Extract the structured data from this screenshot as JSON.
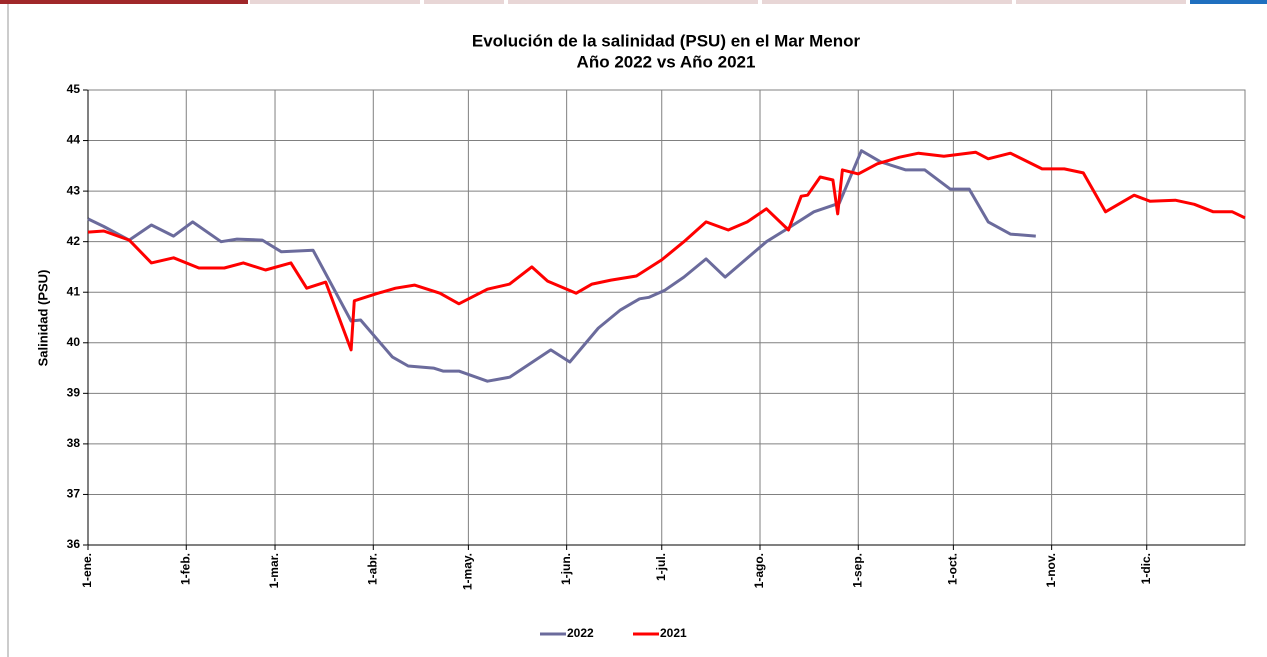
{
  "chart_data": {
    "type": "line",
    "title": "Evolución de la salinidad (PSU) en el Mar Menor",
    "subtitle": "Año 2022 vs Año 2021",
    "y_label": "Salinidad (PSU)",
    "xlim": [
      0,
      365
    ],
    "xticks": [
      {
        "value": 0,
        "label": "1-ene."
      },
      {
        "value": 31,
        "label": "1-feb."
      },
      {
        "value": 59,
        "label": "1-mar."
      },
      {
        "value": 90,
        "label": "1-abr."
      },
      {
        "value": 120,
        "label": "1-may."
      },
      {
        "value": 151,
        "label": "1-jun."
      },
      {
        "value": 181,
        "label": "1-jul."
      },
      {
        "value": 212,
        "label": "1-ago."
      },
      {
        "value": 243,
        "label": "1-sep."
      },
      {
        "value": 273,
        "label": "1-oct."
      },
      {
        "value": 304,
        "label": "1-nov."
      },
      {
        "value": 334,
        "label": "1-dic."
      }
    ],
    "ylim": [
      36,
      45
    ],
    "yticks": [
      36,
      37,
      38,
      39,
      40,
      41,
      42,
      43,
      44,
      45
    ],
    "grid": true,
    "legend": "bottom",
    "series": [
      {
        "name": "2022",
        "color": "#6b6b9c",
        "x": [
          0,
          5,
          13,
          20,
          27,
          33,
          42,
          47,
          55,
          61,
          71,
          83,
          86,
          96,
          101,
          109,
          112,
          117,
          126,
          133,
          146,
          152,
          161,
          168,
          174,
          177,
          182,
          188,
          195,
          201,
          214,
          221,
          229,
          237,
          244,
          250,
          258,
          264,
          272,
          278,
          284,
          291,
          299
        ],
        "values": [
          42.45,
          42.3,
          42.03,
          42.33,
          42.11,
          42.39,
          42.0,
          42.05,
          42.03,
          41.8,
          41.83,
          40.43,
          40.45,
          39.72,
          39.54,
          39.5,
          39.44,
          39.44,
          39.24,
          39.32,
          39.86,
          39.62,
          40.29,
          40.65,
          40.87,
          40.9,
          41.04,
          41.3,
          41.66,
          41.3,
          42.0,
          42.27,
          42.59,
          42.76,
          43.8,
          43.58,
          43.42,
          43.42,
          43.04,
          43.04,
          42.39,
          42.15,
          42.11
        ]
      },
      {
        "name": "2021",
        "color": "#ff0000",
        "x": [
          0,
          5,
          13,
          20,
          27,
          35,
          43,
          49,
          56,
          64,
          69,
          75,
          83,
          84,
          91,
          97,
          103,
          111,
          117,
          126,
          133,
          140,
          145,
          154,
          159,
          165,
          173,
          181,
          188,
          195,
          202,
          208,
          214,
          221,
          225,
          227,
          231,
          235,
          236.5,
          238,
          243,
          249,
          256,
          262,
          270,
          280,
          284,
          291,
          301,
          308,
          314,
          321,
          330,
          335,
          343,
          349,
          355,
          361,
          365
        ],
        "values": [
          42.19,
          42.21,
          42.03,
          41.58,
          41.68,
          41.48,
          41.48,
          41.58,
          41.44,
          41.58,
          41.08,
          41.2,
          39.86,
          40.83,
          40.97,
          41.08,
          41.14,
          40.98,
          40.77,
          41.06,
          41.16,
          41.5,
          41.22,
          40.98,
          41.16,
          41.24,
          41.32,
          41.64,
          42.0,
          42.39,
          42.23,
          42.39,
          42.65,
          42.23,
          42.9,
          42.92,
          43.28,
          43.22,
          42.55,
          43.42,
          43.34,
          43.54,
          43.67,
          43.75,
          43.69,
          43.77,
          43.64,
          43.75,
          43.44,
          43.44,
          43.36,
          42.59,
          42.92,
          42.8,
          42.82,
          42.74,
          42.59,
          42.59,
          42.47
        ]
      }
    ]
  }
}
